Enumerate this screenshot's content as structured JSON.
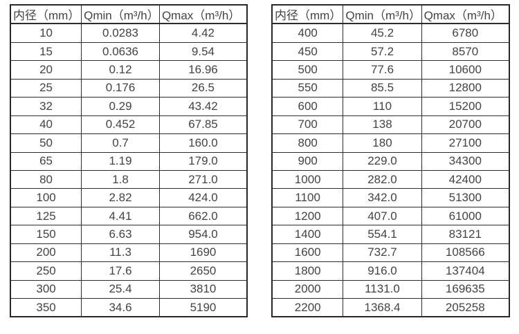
{
  "colors": {
    "background": "#ffffff",
    "text": "#434343",
    "border": "#2b2b2b"
  },
  "tables": [
    {
      "name": "flow-spec-table-small-diameters",
      "columns": [
        "内径（mm）",
        "Qmin（m³/h）",
        "Qmax（m³/h）"
      ],
      "rows": [
        [
          "10",
          "0.0283",
          "4.42"
        ],
        [
          "15",
          "0.0636",
          "9.54"
        ],
        [
          "20",
          "0.12",
          "16.96"
        ],
        [
          "25",
          "0.176",
          "26.5"
        ],
        [
          "32",
          "0.29",
          "43.42"
        ],
        [
          "40",
          "0.452",
          "67.85"
        ],
        [
          "50",
          "0.7",
          "160.0"
        ],
        [
          "65",
          "1.19",
          "179.0"
        ],
        [
          "80",
          "1.8",
          "271.0"
        ],
        [
          "100",
          "2.82",
          "424.0"
        ],
        [
          "125",
          "4.41",
          "662.0"
        ],
        [
          "150",
          "6.63",
          "954.0"
        ],
        [
          "200",
          "11.3",
          "1690"
        ],
        [
          "250",
          "17.6",
          "2650"
        ],
        [
          "300",
          "25.4",
          "3810"
        ],
        [
          "350",
          "34.6",
          "5190"
        ]
      ]
    },
    {
      "name": "flow-spec-table-large-diameters",
      "columns": [
        "内径（mm）",
        "Qmin（m³/h）",
        "Qmax（m³/h）"
      ],
      "rows": [
        [
          "400",
          "45.2",
          "6780"
        ],
        [
          "450",
          "57.2",
          "8570"
        ],
        [
          "500",
          "77.6",
          "10600"
        ],
        [
          "550",
          "85.5",
          "12800"
        ],
        [
          "600",
          "110",
          "15200"
        ],
        [
          "700",
          "138",
          "20700"
        ],
        [
          "800",
          "180",
          "27100"
        ],
        [
          "900",
          "229.0",
          "34300"
        ],
        [
          "1000",
          "282.0",
          "42400"
        ],
        [
          "1100",
          "342.0",
          "51300"
        ],
        [
          "1200",
          "407.0",
          "61000"
        ],
        [
          "1400",
          "554.1",
          "83121"
        ],
        [
          "1600",
          "732.7",
          "108566"
        ],
        [
          "1800",
          "916.0",
          "137404"
        ],
        [
          "2000",
          "1131.0",
          "169635"
        ],
        [
          "2200",
          "1368.4",
          "205258"
        ]
      ]
    }
  ]
}
